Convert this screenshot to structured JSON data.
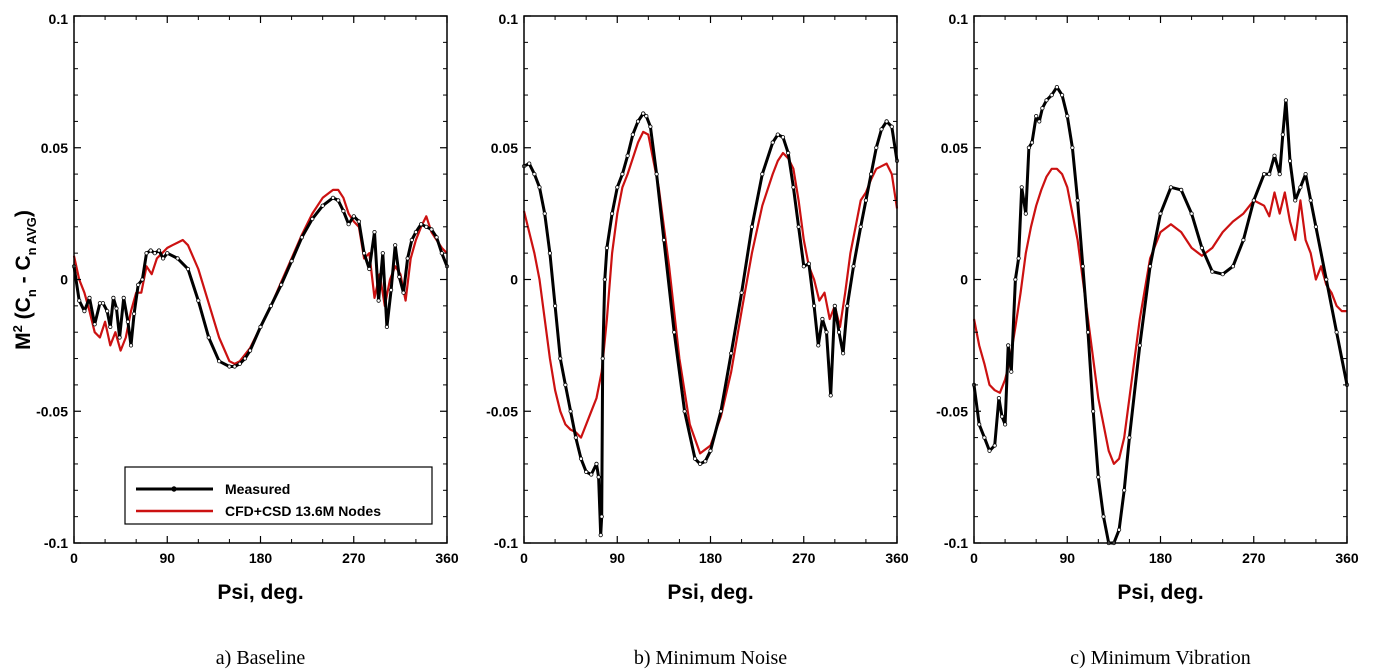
{
  "ylabel": {
    "base": "M",
    "sup": "2",
    "open": " (C",
    "sub1": "n",
    "mid": " - C",
    "sub2": "n AVG",
    "close": ")"
  },
  "legend": {
    "measured": "Measured",
    "cfd": "CFD+CSD  13.6M Nodes"
  },
  "colors": {
    "measured": "#000000",
    "cfd": "#cc1111"
  },
  "chart_data": [
    {
      "type": "line",
      "caption": "a) Baseline",
      "xlabel": "Psi, deg.",
      "xlim": [
        0,
        360
      ],
      "ylim": [
        -0.1,
        0.1
      ],
      "xticks": [
        "0",
        "90",
        "180",
        "270",
        "360"
      ],
      "yticks": [
        "-0.1",
        "-0.05",
        "0",
        "0.05",
        "0.1"
      ],
      "series": [
        {
          "name": "Measured",
          "markers": true,
          "x": [
            0,
            5,
            10,
            15,
            20,
            25,
            28,
            32,
            35,
            38,
            41,
            44,
            48,
            52,
            55,
            58,
            62,
            66,
            70,
            74,
            78,
            82,
            86,
            90,
            100,
            110,
            120,
            130,
            140,
            150,
            155,
            160,
            165,
            170,
            180,
            190,
            200,
            210,
            220,
            230,
            240,
            250,
            255,
            260,
            265,
            270,
            275,
            280,
            285,
            290,
            294,
            298,
            302,
            306,
            310,
            314,
            318,
            322,
            326,
            330,
            335,
            340,
            345,
            350,
            355,
            360
          ],
          "y": [
            0.005,
            -0.008,
            -0.012,
            -0.007,
            -0.017,
            -0.009,
            -0.009,
            -0.012,
            -0.018,
            -0.007,
            -0.011,
            -0.022,
            -0.007,
            -0.016,
            -0.025,
            -0.013,
            -0.002,
            0.0,
            0.01,
            0.011,
            0.01,
            0.011,
            0.008,
            0.01,
            0.008,
            0.004,
            -0.008,
            -0.022,
            -0.031,
            -0.033,
            -0.033,
            -0.032,
            -0.03,
            -0.027,
            -0.018,
            -0.01,
            -0.002,
            0.007,
            0.016,
            0.023,
            0.028,
            0.031,
            0.03,
            0.026,
            0.021,
            0.024,
            0.022,
            0.01,
            0.004,
            0.018,
            -0.008,
            0.01,
            -0.018,
            -0.004,
            0.013,
            0.001,
            -0.005,
            0.008,
            0.015,
            0.018,
            0.021,
            0.02,
            0.019,
            0.016,
            0.01,
            0.005
          ]
        },
        {
          "name": "CFD+CSD  13.6M Nodes",
          "markers": false,
          "x": [
            0,
            5,
            10,
            15,
            20,
            25,
            30,
            35,
            40,
            45,
            50,
            55,
            60,
            65,
            70,
            75,
            80,
            85,
            90,
            95,
            100,
            105,
            110,
            120,
            130,
            140,
            150,
            155,
            160,
            170,
            180,
            190,
            200,
            210,
            220,
            230,
            240,
            250,
            255,
            260,
            265,
            270,
            275,
            280,
            285,
            290,
            295,
            300,
            305,
            310,
            315,
            320,
            325,
            330,
            335,
            340,
            345,
            350,
            355,
            360
          ],
          "y": [
            0.009,
            0.0,
            -0.005,
            -0.012,
            -0.02,
            -0.022,
            -0.016,
            -0.025,
            -0.02,
            -0.027,
            -0.022,
            -0.012,
            -0.005,
            -0.005,
            0.005,
            0.002,
            0.008,
            0.01,
            0.012,
            0.013,
            0.014,
            0.015,
            0.013,
            0.004,
            -0.009,
            -0.022,
            -0.031,
            -0.032,
            -0.031,
            -0.026,
            -0.018,
            -0.01,
            -0.001,
            0.008,
            0.017,
            0.025,
            0.031,
            0.034,
            0.034,
            0.031,
            0.025,
            0.022,
            0.02,
            0.008,
            0.01,
            -0.007,
            0.002,
            -0.01,
            0.0,
            0.005,
            0.002,
            -0.008,
            0.008,
            0.015,
            0.02,
            0.024,
            0.018,
            0.015,
            0.012,
            0.01
          ]
        }
      ]
    },
    {
      "type": "line",
      "caption": "b) Minimum Noise",
      "xlabel": "Psi, deg.",
      "xlim": [
        0,
        360
      ],
      "ylim": [
        -0.1,
        0.1
      ],
      "xticks": [
        "0",
        "90",
        "180",
        "270",
        "360"
      ],
      "yticks": [
        "-0.1",
        "-0.05",
        "0",
        "0.05",
        "0.1"
      ],
      "series": [
        {
          "name": "Measured",
          "markers": true,
          "x": [
            0,
            5,
            10,
            15,
            20,
            25,
            30,
            35,
            40,
            45,
            50,
            55,
            60,
            65,
            70,
            72,
            74,
            75,
            76,
            78,
            80,
            85,
            90,
            95,
            100,
            105,
            110,
            115,
            118,
            122,
            128,
            135,
            145,
            155,
            165,
            170,
            175,
            180,
            190,
            200,
            210,
            220,
            230,
            240,
            245,
            250,
            255,
            260,
            265,
            270,
            275,
            280,
            284,
            288,
            292,
            296,
            300,
            304,
            308,
            312,
            318,
            325,
            330,
            335,
            340,
            345,
            350,
            355,
            360
          ],
          "y": [
            0.043,
            0.044,
            0.04,
            0.035,
            0.025,
            0.01,
            -0.01,
            -0.03,
            -0.04,
            -0.05,
            -0.06,
            -0.068,
            -0.073,
            -0.074,
            -0.07,
            -0.075,
            -0.097,
            -0.09,
            -0.03,
            0.0,
            0.012,
            0.025,
            0.035,
            0.04,
            0.047,
            0.055,
            0.06,
            0.063,
            0.062,
            0.058,
            0.04,
            0.015,
            -0.02,
            -0.05,
            -0.068,
            -0.07,
            -0.069,
            -0.065,
            -0.05,
            -0.028,
            -0.005,
            0.02,
            0.04,
            0.052,
            0.055,
            0.054,
            0.048,
            0.035,
            0.02,
            0.005,
            0.006,
            -0.01,
            -0.025,
            -0.015,
            -0.02,
            -0.044,
            -0.01,
            -0.02,
            -0.028,
            -0.01,
            0.005,
            0.02,
            0.03,
            0.04,
            0.05,
            0.057,
            0.06,
            0.058,
            0.045
          ]
        },
        {
          "name": "CFD+CSD  13.6M Nodes",
          "markers": false,
          "x": [
            0,
            5,
            10,
            15,
            20,
            25,
            30,
            35,
            40,
            45,
            50,
            55,
            60,
            65,
            70,
            75,
            80,
            85,
            90,
            95,
            100,
            105,
            110,
            115,
            120,
            130,
            140,
            150,
            160,
            170,
            180,
            190,
            200,
            210,
            220,
            230,
            240,
            245,
            250,
            255,
            260,
            265,
            270,
            275,
            280,
            285,
            290,
            295,
            300,
            305,
            310,
            315,
            320,
            325,
            330,
            335,
            340,
            345,
            350,
            355,
            360
          ],
          "y": [
            0.026,
            0.018,
            0.01,
            0.0,
            -0.015,
            -0.03,
            -0.042,
            -0.05,
            -0.055,
            -0.057,
            -0.058,
            -0.06,
            -0.055,
            -0.05,
            -0.045,
            -0.035,
            -0.015,
            0.01,
            0.025,
            0.035,
            0.04,
            0.046,
            0.052,
            0.056,
            0.055,
            0.035,
            0.005,
            -0.03,
            -0.055,
            -0.066,
            -0.063,
            -0.052,
            -0.035,
            -0.012,
            0.01,
            0.028,
            0.04,
            0.045,
            0.048,
            0.046,
            0.042,
            0.03,
            0.015,
            0.005,
            0.0,
            -0.008,
            -0.005,
            -0.015,
            -0.01,
            -0.018,
            -0.005,
            0.01,
            0.02,
            0.03,
            0.033,
            0.038,
            0.042,
            0.043,
            0.044,
            0.04,
            0.027
          ]
        }
      ]
    },
    {
      "type": "line",
      "caption": "c) Minimum Vibration",
      "xlabel": "Psi, deg.",
      "xlim": [
        0,
        360
      ],
      "ylim": [
        -0.1,
        0.1
      ],
      "xticks": [
        "0",
        "90",
        "180",
        "270",
        "360"
      ],
      "yticks": [
        "-0.1",
        "-0.05",
        "0",
        "0.05",
        "0.1"
      ],
      "series": [
        {
          "name": "Measured",
          "markers": true,
          "x": [
            0,
            5,
            10,
            15,
            20,
            24,
            27,
            30,
            33,
            36,
            40,
            43,
            46,
            50,
            53,
            56,
            60,
            63,
            66,
            70,
            75,
            80,
            85,
            90,
            95,
            100,
            105,
            110,
            115,
            120,
            125,
            130,
            135,
            140,
            145,
            150,
            160,
            170,
            180,
            190,
            200,
            210,
            220,
            230,
            240,
            250,
            260,
            270,
            280,
            285,
            290,
            295,
            298,
            301,
            305,
            310,
            315,
            320,
            325,
            330,
            340,
            350,
            360
          ],
          "y": [
            -0.04,
            -0.055,
            -0.06,
            -0.065,
            -0.063,
            -0.045,
            -0.052,
            -0.055,
            -0.025,
            -0.035,
            0.0,
            0.008,
            0.035,
            0.025,
            0.05,
            0.052,
            0.062,
            0.06,
            0.065,
            0.068,
            0.07,
            0.073,
            0.07,
            0.062,
            0.05,
            0.03,
            0.005,
            -0.02,
            -0.05,
            -0.075,
            -0.09,
            -0.1,
            -0.1,
            -0.095,
            -0.08,
            -0.06,
            -0.025,
            0.005,
            0.025,
            0.035,
            0.034,
            0.025,
            0.012,
            0.003,
            0.002,
            0.005,
            0.015,
            0.03,
            0.04,
            0.04,
            0.047,
            0.04,
            0.055,
            0.068,
            0.045,
            0.03,
            0.035,
            0.04,
            0.03,
            0.02,
            0.0,
            -0.02,
            -0.04
          ]
        },
        {
          "name": "CFD+CSD  13.6M Nodes",
          "markers": false,
          "x": [
            0,
            5,
            10,
            15,
            20,
            25,
            30,
            35,
            40,
            45,
            50,
            55,
            60,
            65,
            70,
            75,
            80,
            85,
            90,
            100,
            110,
            120,
            130,
            135,
            140,
            145,
            150,
            160,
            170,
            180,
            190,
            200,
            210,
            220,
            230,
            240,
            250,
            260,
            270,
            280,
            285,
            290,
            295,
            300,
            305,
            310,
            315,
            320,
            325,
            330,
            335,
            340,
            345,
            350,
            355,
            360
          ],
          "y": [
            -0.015,
            -0.025,
            -0.032,
            -0.04,
            -0.042,
            -0.043,
            -0.038,
            -0.03,
            -0.018,
            -0.005,
            0.01,
            0.02,
            0.028,
            0.034,
            0.039,
            0.042,
            0.042,
            0.04,
            0.035,
            0.015,
            -0.015,
            -0.045,
            -0.065,
            -0.07,
            -0.068,
            -0.06,
            -0.045,
            -0.015,
            0.008,
            0.018,
            0.021,
            0.018,
            0.012,
            0.009,
            0.012,
            0.018,
            0.022,
            0.025,
            0.03,
            0.028,
            0.024,
            0.033,
            0.025,
            0.033,
            0.022,
            0.015,
            0.03,
            0.015,
            0.01,
            0.0,
            0.005,
            -0.002,
            -0.005,
            -0.01,
            -0.012,
            -0.012
          ]
        }
      ]
    }
  ]
}
